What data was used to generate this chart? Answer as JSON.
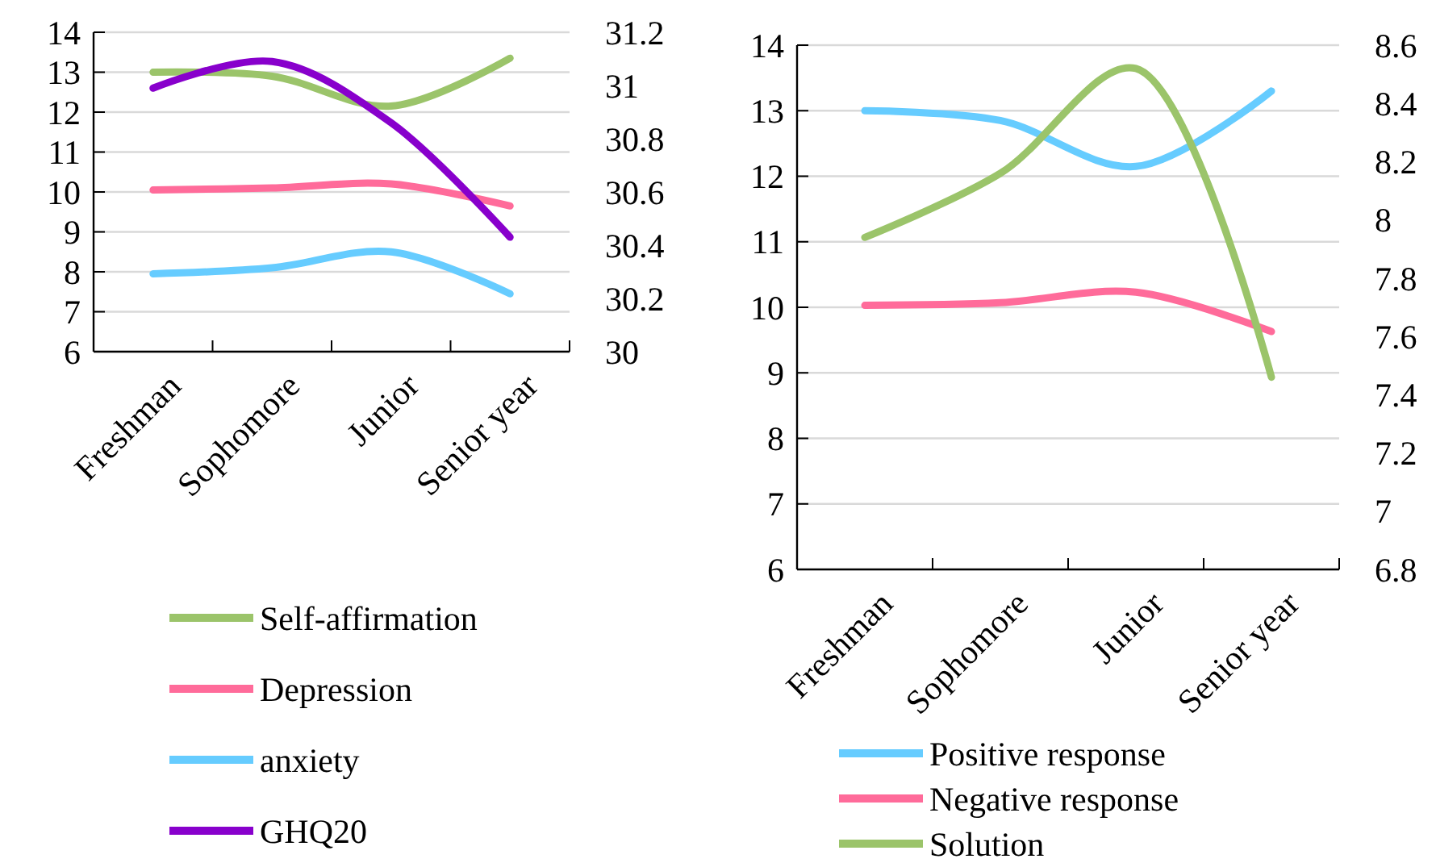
{
  "chart_data": [
    {
      "type": "line",
      "categories": [
        "Freshman",
        "Sophomore",
        "Junior",
        "Senior year"
      ],
      "ylim": [
        6,
        14
      ],
      "yticks": [
        6,
        7,
        8,
        9,
        10,
        11,
        12,
        13,
        14
      ],
      "y2lim": [
        30,
        31.2
      ],
      "y2ticks": [
        30,
        30.2,
        30.4,
        30.6,
        30.8,
        31,
        31.2
      ],
      "grid": "y",
      "legend": "bottom left",
      "marker": "none",
      "line_style": "solid",
      "series": [
        {
          "name": "Self-affirmation",
          "color": "#9bc46a",
          "values": [
            13,
            12.9,
            12.15,
            13.35
          ]
        },
        {
          "name": "Depression",
          "color": "#ff6b9a",
          "values": [
            10.05,
            10.1,
            10.2,
            9.65
          ]
        },
        {
          "name": "anxiety",
          "color": "#66ccff",
          "values": [
            7.95,
            8.1,
            8.5,
            7.45
          ]
        },
        {
          "name": "GHQ20",
          "color": "#8800cc",
          "axis": "y2",
          "values": [
            30.99,
            31.09,
            30.86,
            30.43
          ]
        }
      ]
    },
    {
      "type": "line",
      "categories": [
        "Freshman",
        "Sophomore",
        "Junior",
        "Senior year"
      ],
      "ylim": [
        6,
        14
      ],
      "yticks": [
        6,
        7,
        8,
        9,
        10,
        11,
        12,
        13,
        14
      ],
      "y2lim": [
        6.8,
        8.6
      ],
      "y2ticks": [
        6.8,
        7,
        7.2,
        7.4,
        7.6,
        7.8,
        8,
        8.2,
        8.4,
        8.6
      ],
      "grid": "y",
      "legend": "bottom",
      "marker": "none",
      "line_style": "solid",
      "series": [
        {
          "name": "Positive response",
          "color": "#66ccff",
          "values": [
            13,
            12.85,
            12.15,
            13.3
          ]
        },
        {
          "name": "Negative response",
          "color": "#ff6b9a",
          "values": [
            10.03,
            10.07,
            10.23,
            9.63
          ]
        },
        {
          "name": "Solution",
          "color": "#9bc46a",
          "axis": "y2",
          "values": [
            7.94,
            8.16,
            8.52,
            7.46
          ]
        }
      ]
    }
  ]
}
